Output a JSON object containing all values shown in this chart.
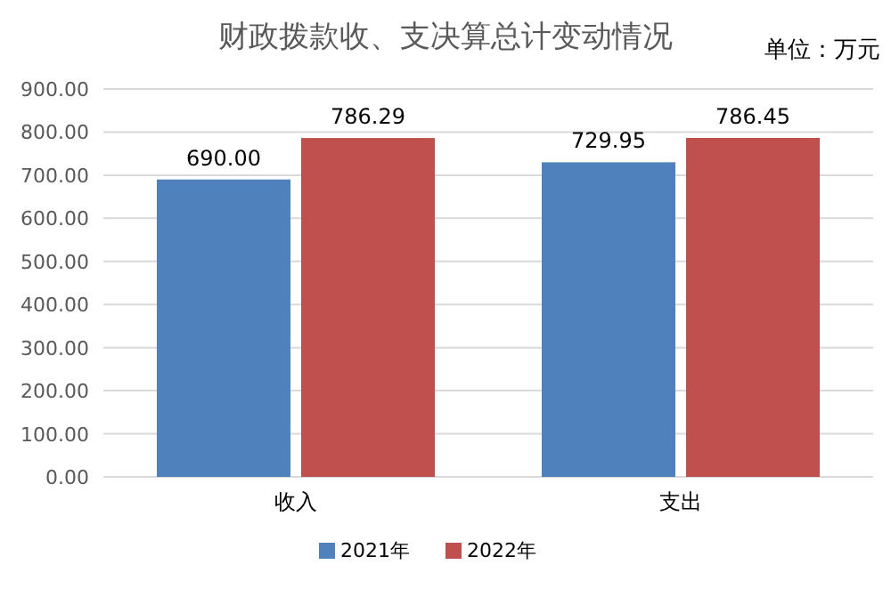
{
  "chart_data": {
    "type": "bar",
    "title": "财政拨款收、支决算总计变动情况",
    "subtitle": "单位：万元",
    "categories": [
      "收入",
      "支出"
    ],
    "series": [
      {
        "name": "2021年",
        "color": "#4f81bd",
        "values": [
          690.0,
          729.95
        ],
        "value_labels": [
          "690.00",
          "729.95"
        ]
      },
      {
        "name": "2022年",
        "color": "#c0504d",
        "values": [
          786.29,
          786.45
        ],
        "value_labels": [
          "786.29",
          "786.45"
        ]
      }
    ],
    "ylim": [
      0,
      900
    ],
    "yticks": [
      {
        "value": 0,
        "label": "0.00"
      },
      {
        "value": 100,
        "label": "100.00"
      },
      {
        "value": 200,
        "label": "200.00"
      },
      {
        "value": 300,
        "label": "300.00"
      },
      {
        "value": 400,
        "label": "400.00"
      },
      {
        "value": 500,
        "label": "500.00"
      },
      {
        "value": 600,
        "label": "600.00"
      },
      {
        "value": 700,
        "label": "700.00"
      },
      {
        "value": 800,
        "label": "800.00"
      },
      {
        "value": 900,
        "label": "900.00"
      }
    ],
    "grid": "y",
    "legend": "bottom"
  }
}
